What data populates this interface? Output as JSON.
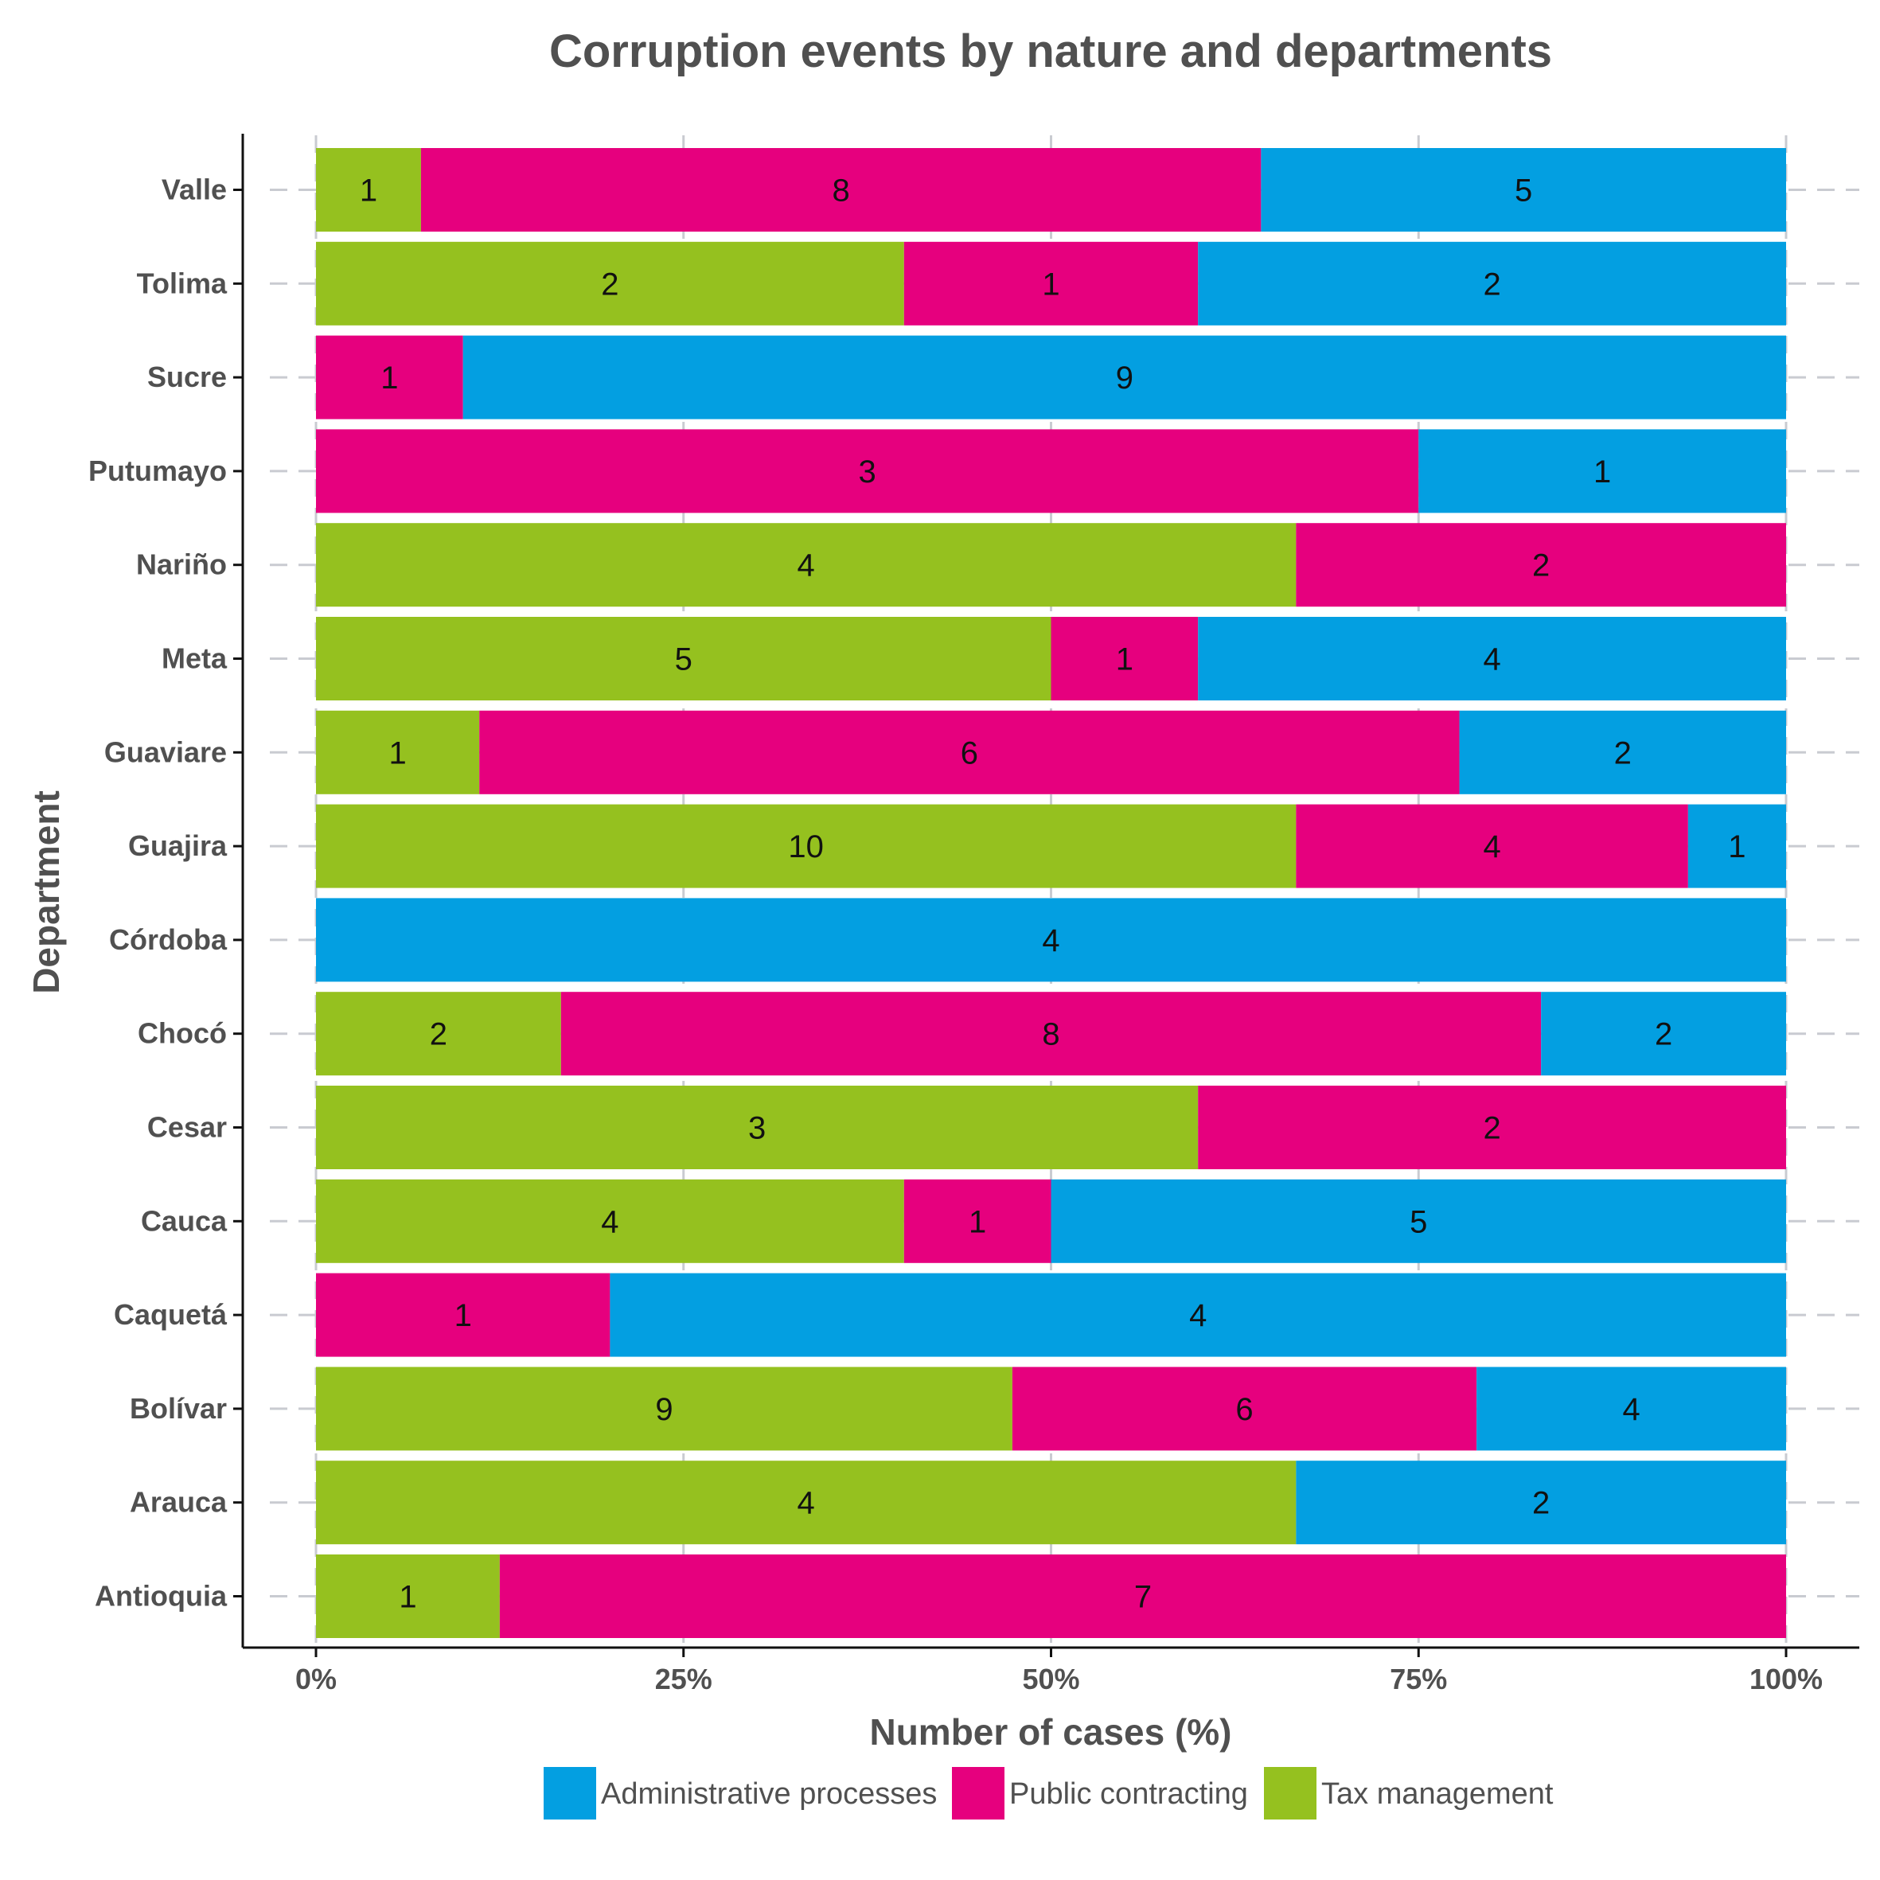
{
  "chart_data": {
    "type": "bar",
    "orientation": "horizontal",
    "stacked": "percent",
    "title": "Corruption events by nature and departments",
    "xlabel": "Number of cases (%)",
    "ylabel": "Department",
    "x_ticks": [
      "0%",
      "25%",
      "50%",
      "75%",
      "100%"
    ],
    "xlim": [
      0,
      100
    ],
    "grid": true,
    "legend_position": "bottom",
    "categories": [
      "Valle",
      "Tolima",
      "Sucre",
      "Putumayo",
      "Nariño",
      "Meta",
      "Guaviare",
      "Guajira",
      "Córdoba",
      "Chocó",
      "Cesar",
      "Cauca",
      "Caquetá",
      "Bolívar",
      "Arauca",
      "Antioquia"
    ],
    "stack_order": [
      "Tax management",
      "Public contracting",
      "Administrative processes"
    ],
    "series": [
      {
        "name": "Administrative processes",
        "color": "#039fe1",
        "values": [
          5,
          2,
          9,
          1,
          0,
          4,
          2,
          1,
          4,
          2,
          0,
          5,
          4,
          4,
          2,
          0
        ]
      },
      {
        "name": "Public contracting",
        "color": "#e6007e",
        "values": [
          8,
          1,
          1,
          3,
          2,
          1,
          6,
          4,
          0,
          8,
          2,
          1,
          1,
          6,
          0,
          7
        ]
      },
      {
        "name": "Tax management",
        "color": "#95c11f",
        "values": [
          1,
          2,
          0,
          0,
          4,
          5,
          1,
          10,
          0,
          2,
          3,
          4,
          0,
          9,
          4,
          1
        ]
      }
    ]
  }
}
